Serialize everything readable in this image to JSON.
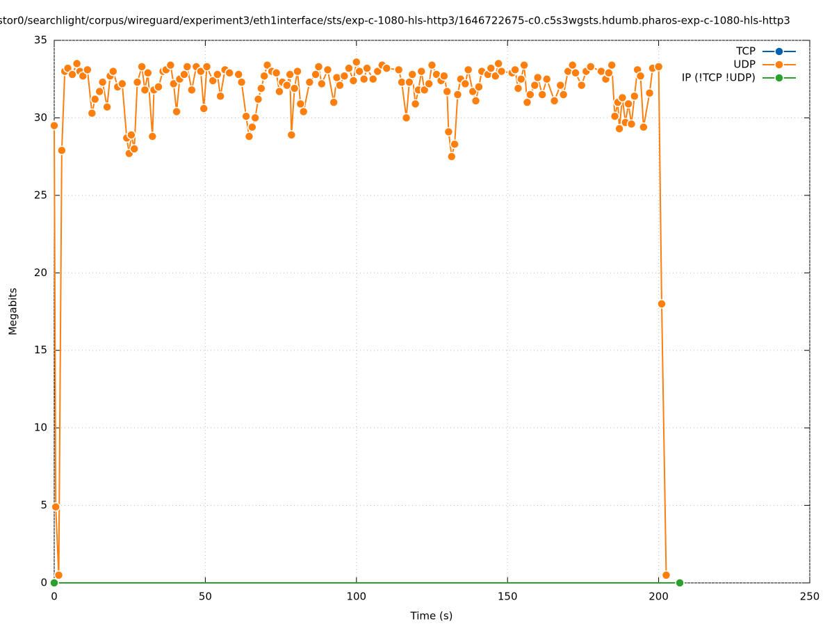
{
  "chart_data": {
    "type": "line",
    "title": "stor0/searchlight/corpus/wireguard/experiment3/eth1interface/sts/exp-c-1080-hls-http3/1646722675-c0.c5s3wgsts.hdumb.pharos-exp-c-1080-hls-http3",
    "x_label": "Time (s)",
    "y_label": "Megabits",
    "xlim": [
      0,
      250
    ],
    "xticks": [
      0,
      50,
      100,
      150,
      200,
      250
    ],
    "ylim": [
      0,
      35
    ],
    "yticks": [
      0,
      5,
      10,
      15,
      20,
      25,
      30,
      35
    ],
    "grid": true,
    "legend": "top-right",
    "series": [
      {
        "name": "TCP",
        "color": "#0060ad",
        "x": [
          0,
          207
        ],
        "values": [
          0,
          0
        ]
      },
      {
        "name": "UDP",
        "color": "#ff7f0e",
        "x": [
          0,
          0.5,
          1.5,
          2.5,
          3.5,
          4.5,
          6,
          7.5,
          8.5,
          9.5,
          11,
          12.5,
          13.5,
          15,
          16,
          17.5,
          18.5,
          19.5,
          21,
          22.5,
          24,
          24.8,
          25.5,
          26.5,
          27.5,
          29,
          30,
          31,
          32.5,
          33,
          34.5,
          36,
          37,
          38.5,
          39.5,
          40.5,
          41.5,
          43,
          44,
          45.5,
          47,
          48.5,
          49.5,
          50.5,
          52.5,
          54,
          55,
          56.5,
          58,
          61,
          62,
          63.5,
          64.5,
          65.5,
          66.5,
          67.5,
          68.5,
          69.5,
          70.5,
          72,
          73.5,
          74.5,
          75.5,
          77,
          78,
          78.5,
          79.5,
          80.5,
          81.5,
          82.5,
          84.5,
          86.5,
          87.5,
          88.5,
          90.5,
          92.5,
          93.5,
          94.5,
          96,
          97.5,
          99,
          100,
          101,
          102.5,
          103.5,
          105.5,
          107,
          108.5,
          110,
          114,
          115,
          116.5,
          117.5,
          118.5,
          119.5,
          120.5,
          121.5,
          122.5,
          124,
          125,
          126.5,
          128,
          129,
          130,
          130.5,
          131.5,
          132.5,
          133.5,
          134.5,
          136,
          137,
          138.5,
          139.5,
          140.5,
          141.5,
          143.5,
          144.5,
          146,
          147,
          148,
          151.5,
          152.5,
          153.5,
          154.5,
          155.5,
          156.5,
          157.5,
          159,
          160,
          161.5,
          163,
          165.5,
          167.5,
          168.5,
          170,
          171.5,
          172.5,
          174.5,
          176,
          177.5,
          181,
          182.5,
          183.5,
          184.5,
          185.5,
          186.5,
          187,
          188,
          189,
          190,
          191,
          192,
          193,
          194,
          195,
          197,
          198,
          200,
          201,
          202.5
        ],
        "values": [
          29.5,
          4.9,
          0.5,
          27.9,
          33.0,
          33.2,
          32.8,
          33.5,
          33.0,
          32.7,
          33.1,
          30.3,
          31.2,
          31.7,
          32.3,
          30.7,
          32.7,
          33.0,
          32.0,
          32.2,
          28.7,
          27.7,
          28.9,
          28.0,
          32.3,
          33.3,
          31.8,
          32.9,
          28.8,
          31.8,
          32.0,
          33.0,
          33.1,
          33.4,
          32.2,
          30.4,
          32.5,
          32.8,
          33.3,
          31.8,
          33.3,
          33.0,
          30.6,
          33.3,
          32.4,
          32.8,
          31.4,
          33.1,
          32.9,
          32.8,
          32.3,
          30.1,
          28.8,
          29.4,
          30.0,
          31.2,
          31.9,
          32.7,
          33.4,
          33.0,
          32.9,
          31.7,
          32.3,
          32.1,
          32.8,
          28.9,
          31.9,
          33.0,
          30.9,
          30.4,
          32.3,
          32.8,
          33.3,
          32.2,
          33.1,
          31.0,
          32.6,
          32.1,
          32.7,
          33.2,
          32.4,
          33.6,
          33.0,
          32.5,
          33.2,
          32.5,
          33.0,
          33.4,
          33.2,
          33.1,
          32.3,
          30.0,
          32.3,
          32.8,
          30.9,
          31.8,
          33.0,
          31.8,
          32.2,
          33.4,
          32.8,
          32.4,
          32.7,
          31.7,
          29.1,
          27.5,
          28.3,
          31.5,
          32.5,
          32.2,
          33.1,
          31.7,
          31.1,
          32.0,
          33.0,
          32.8,
          33.2,
          32.7,
          33.5,
          33.0,
          32.9,
          33.1,
          31.9,
          32.5,
          33.4,
          31.0,
          31.5,
          32.1,
          32.6,
          31.5,
          32.5,
          31.1,
          32.1,
          31.5,
          33.0,
          33.4,
          32.9,
          32.1,
          33.0,
          33.3,
          33.0,
          32.5,
          32.9,
          33.4,
          30.1,
          31.0,
          29.3,
          31.3,
          29.7,
          30.9,
          29.6,
          31.4,
          33.1,
          32.7,
          29.4,
          31.6,
          33.2,
          33.3,
          18.0,
          0.5
        ]
      },
      {
        "name": "IP (!TCP  !UDP)",
        "color": "#2ca02c",
        "x": [
          0,
          207
        ],
        "values": [
          0,
          0
        ]
      }
    ]
  }
}
